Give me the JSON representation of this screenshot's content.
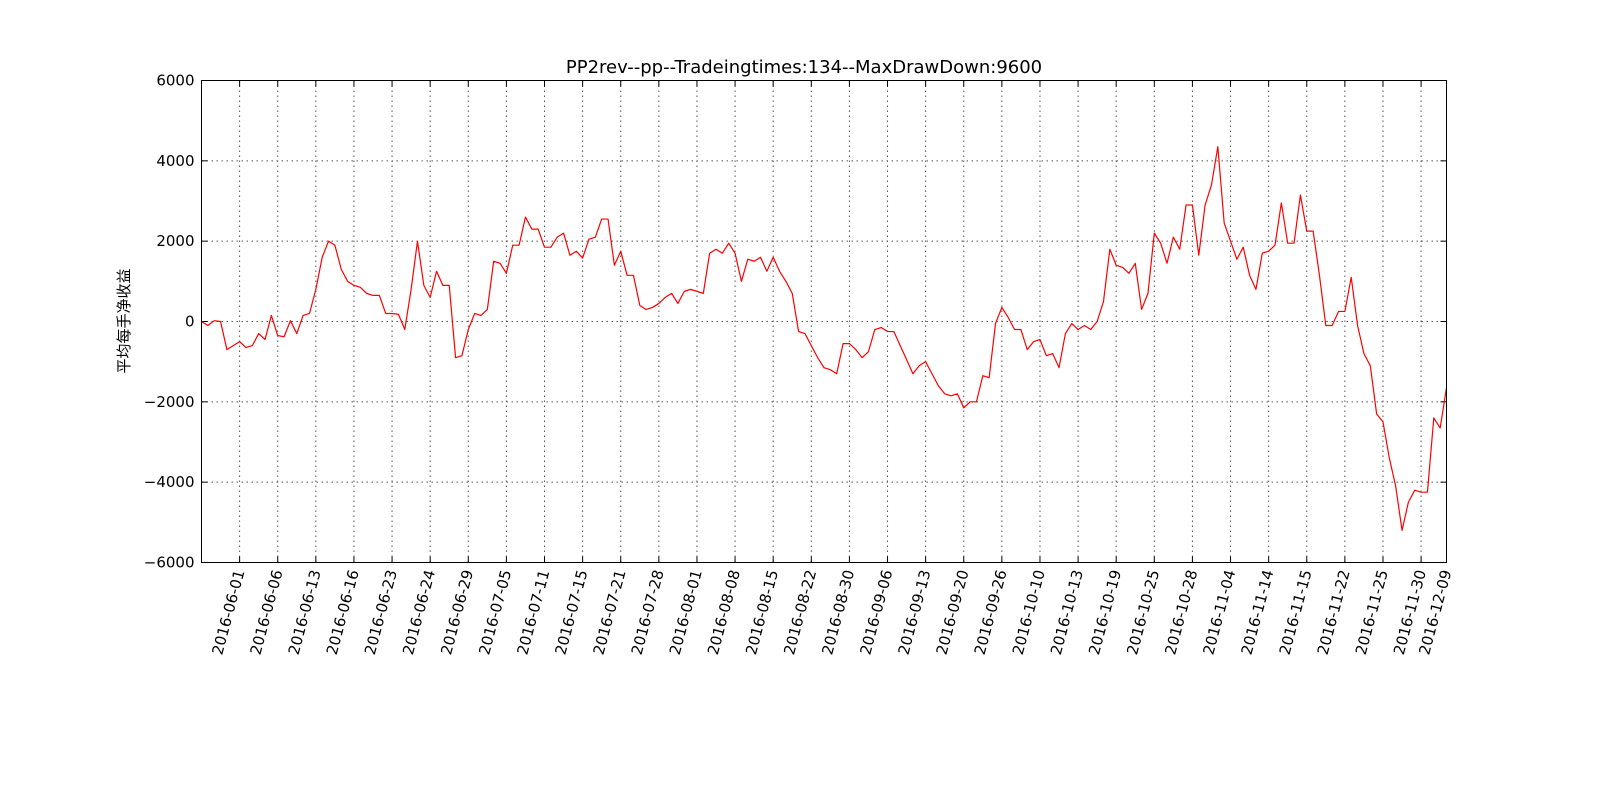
{
  "chart_data": {
    "type": "line",
    "title": "PP2rev--pp--Tradeingtimes:134--MaxDrawDown:9600",
    "ylabel": "平均每手净收益",
    "xlabel": "",
    "ylim": [
      -6000,
      6000
    ],
    "yticks": [
      6000,
      4000,
      2000,
      0,
      -2000,
      -4000,
      -6000
    ],
    "ytick_labels": [
      "6000",
      "4000",
      "2000",
      "0",
      "−2000",
      "−4000",
      "−6000"
    ],
    "grid": true,
    "line_color": "#ff0000",
    "xlim": [
      0,
      196
    ],
    "xticks": [
      {
        "index": 6,
        "label": "2016-06-01"
      },
      {
        "index": 12,
        "label": "2016-06-06"
      },
      {
        "index": 18,
        "label": "2016-06-13"
      },
      {
        "index": 24,
        "label": "2016-06-16"
      },
      {
        "index": 30,
        "label": "2016-06-23"
      },
      {
        "index": 36,
        "label": "2016-06-24"
      },
      {
        "index": 42,
        "label": "2016-06-29"
      },
      {
        "index": 48,
        "label": "2016-07-05"
      },
      {
        "index": 54,
        "label": "2016-07-11"
      },
      {
        "index": 60,
        "label": "2016-07-15"
      },
      {
        "index": 66,
        "label": "2016-07-21"
      },
      {
        "index": 72,
        "label": "2016-07-28"
      },
      {
        "index": 78,
        "label": "2016-08-01"
      },
      {
        "index": 84,
        "label": "2016-08-08"
      },
      {
        "index": 90,
        "label": "2016-08-15"
      },
      {
        "index": 96,
        "label": "2016-08-22"
      },
      {
        "index": 102,
        "label": "2016-08-30"
      },
      {
        "index": 108,
        "label": "2016-09-06"
      },
      {
        "index": 114,
        "label": "2016-09-13"
      },
      {
        "index": 120,
        "label": "2016-09-20"
      },
      {
        "index": 126,
        "label": "2016-09-26"
      },
      {
        "index": 132,
        "label": "2016-10-10"
      },
      {
        "index": 138,
        "label": "2016-10-13"
      },
      {
        "index": 144,
        "label": "2016-10-19"
      },
      {
        "index": 150,
        "label": "2016-10-25"
      },
      {
        "index": 156,
        "label": "2016-10-28"
      },
      {
        "index": 162,
        "label": "2016-11-04"
      },
      {
        "index": 168,
        "label": "2016-11-14"
      },
      {
        "index": 174,
        "label": "2016-11-15"
      },
      {
        "index": 180,
        "label": "2016-11-22"
      },
      {
        "index": 186,
        "label": "2016-11-25"
      },
      {
        "index": 192,
        "label": "2016-11-30"
      },
      {
        "index": 196,
        "label": "2016-12-09"
      }
    ],
    "series": [
      {
        "values": [
          0,
          -100,
          20,
          0,
          -700,
          -600,
          -500,
          -650,
          -600,
          -300,
          -450,
          150,
          -350,
          -380,
          20,
          -300,
          150,
          200,
          800,
          1600,
          2000,
          1900,
          1300,
          1000,
          900,
          850,
          700,
          650,
          650,
          200,
          200,
          180,
          -200,
          800,
          2000,
          900,
          600,
          1250,
          900,
          900,
          -900,
          -850,
          -200,
          200,
          150,
          300,
          1500,
          1450,
          1200,
          1900,
          1900,
          2600,
          2300,
          2300,
          1850,
          1850,
          2100,
          2200,
          1650,
          1750,
          1580,
          2050,
          2100,
          2550,
          2550,
          1400,
          1750,
          1150,
          1150,
          400,
          300,
          350,
          450,
          600,
          700,
          450,
          750,
          800,
          750,
          700,
          1700,
          1800,
          1700,
          1950,
          1700,
          1000,
          1550,
          1500,
          1600,
          1250,
          1600,
          1250,
          1000,
          700,
          -250,
          -300,
          -600,
          -900,
          -1150,
          -1200,
          -1300,
          -550,
          -550,
          -700,
          -900,
          -750,
          -200,
          -150,
          -250,
          -250,
          -600,
          -950,
          -1300,
          -1100,
          -1000,
          -1300,
          -1600,
          -1800,
          -1850,
          -1800,
          -2150,
          -2000,
          -2000,
          -1350,
          -1400,
          -50,
          350,
          100,
          -200,
          -200,
          -700,
          -500,
          -450,
          -850,
          -800,
          -1150,
          -300,
          -50,
          -200,
          -100,
          -200,
          0,
          500,
          1800,
          1400,
          1350,
          1200,
          1450,
          300,
          700,
          2200,
          1950,
          1450,
          2100,
          1800,
          2900,
          2900,
          1650,
          2900,
          3400,
          4350,
          2450,
          2000,
          1550,
          1850,
          1150,
          800,
          1700,
          1750,
          1900,
          2950,
          1950,
          1950,
          3150,
          2250,
          2250,
          1150,
          -100,
          -100,
          250,
          250,
          1100,
          -100,
          -800,
          -1100,
          -2300,
          -2500,
          -3400,
          -4100,
          -5200,
          -4500,
          -4200,
          -4250,
          -4250,
          -2400,
          -2650,
          -1650
        ]
      }
    ]
  }
}
